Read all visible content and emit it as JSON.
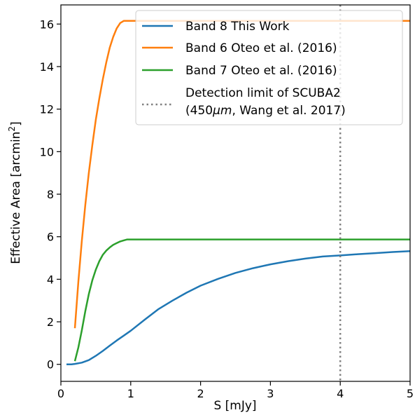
{
  "chart_data": {
    "type": "line",
    "title": "",
    "xlabel": "S [mJy]",
    "ylabel": "Effective Area [arcmin",
    "ylabel_sup": "2",
    "ylabel_end": "]",
    "xlim": [
      0,
      5
    ],
    "ylim": [
      -0.8,
      16.9
    ],
    "xticks": [
      0,
      1,
      2,
      3,
      4,
      5
    ],
    "xtick_labels": [
      "0",
      "1",
      "2",
      "3",
      "4",
      "5"
    ],
    "yticks": [
      0,
      2,
      4,
      6,
      8,
      10,
      12,
      14,
      16
    ],
    "ytick_labels": [
      "0",
      "2",
      "4",
      "6",
      "8",
      "10",
      "12",
      "14",
      "16"
    ],
    "grid": false,
    "legend_position": "top-right",
    "series": [
      {
        "name": "Band 8 This Work",
        "color": "#1f77b4",
        "x": [
          0.08,
          0.15,
          0.2,
          0.3,
          0.4,
          0.5,
          0.6,
          0.7,
          0.8,
          0.9,
          1.0,
          1.2,
          1.4,
          1.6,
          1.8,
          2.0,
          2.25,
          2.5,
          2.75,
          3.0,
          3.25,
          3.5,
          3.75,
          4.0,
          4.25,
          4.5,
          4.75,
          5.0
        ],
        "y": [
          0.0,
          0.0,
          0.02,
          0.08,
          0.2,
          0.4,
          0.63,
          0.88,
          1.12,
          1.35,
          1.58,
          2.1,
          2.6,
          3.0,
          3.37,
          3.7,
          4.02,
          4.3,
          4.52,
          4.7,
          4.85,
          4.97,
          5.07,
          5.12,
          5.18,
          5.23,
          5.28,
          5.32
        ]
      },
      {
        "name": "Band 6 Oteo et al. (2016)",
        "color": "#ff7f0e",
        "x": [
          0.2,
          0.25,
          0.3,
          0.35,
          0.4,
          0.45,
          0.5,
          0.55,
          0.6,
          0.65,
          0.7,
          0.75,
          0.8,
          0.85,
          0.9,
          0.95,
          1.0,
          1.5,
          2.0,
          3.0,
          4.0,
          5.0
        ],
        "y": [
          1.7,
          3.9,
          5.8,
          7.5,
          9.0,
          10.3,
          11.5,
          12.5,
          13.4,
          14.2,
          14.9,
          15.4,
          15.8,
          16.05,
          16.15,
          16.15,
          16.15,
          16.15,
          16.15,
          16.15,
          16.15,
          16.15
        ]
      },
      {
        "name": "Band 7 Oteo et al. (2016)",
        "color": "#2ca02c",
        "x": [
          0.2,
          0.25,
          0.3,
          0.35,
          0.4,
          0.45,
          0.5,
          0.55,
          0.6,
          0.65,
          0.7,
          0.75,
          0.8,
          0.85,
          0.9,
          0.95,
          1.0,
          1.5,
          2.0,
          3.0,
          4.0,
          5.0
        ],
        "y": [
          0.15,
          0.8,
          1.6,
          2.5,
          3.3,
          3.95,
          4.45,
          4.85,
          5.15,
          5.35,
          5.5,
          5.62,
          5.7,
          5.78,
          5.83,
          5.87,
          5.87,
          5.87,
          5.87,
          5.87,
          5.87,
          5.87
        ]
      }
    ],
    "vline": {
      "x": 4.0,
      "color": "#808080",
      "style": "dotted",
      "name_line1": "Detection limit of SCUBA2",
      "name_line2_pre": "(450",
      "name_line2_mu": "μm",
      "name_line2_post": ", Wang et al. 2017)"
    }
  }
}
